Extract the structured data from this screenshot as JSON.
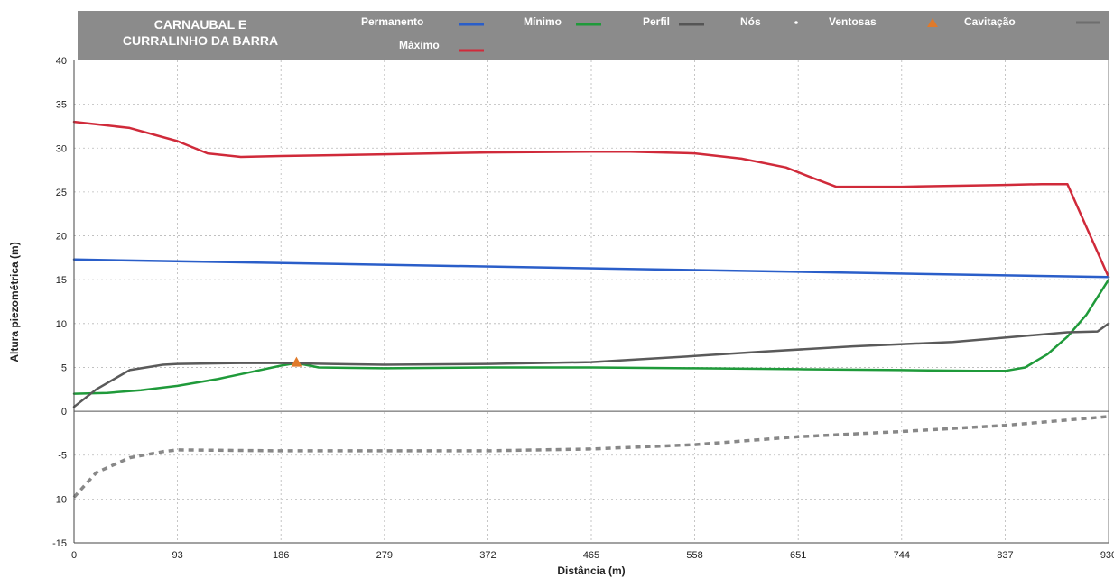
{
  "chart_data": {
    "type": "line",
    "title_lines": [
      "CARNAUBAL E",
      "CURRALINHO DA BARRA"
    ],
    "xlabel": "Distância (m)",
    "ylabel": "Altura piezométrica (m)",
    "xlim": [
      0,
      930
    ],
    "ylim": [
      -15,
      40
    ],
    "x_ticks": [
      "0",
      "93",
      "186",
      "279",
      "372",
      "465",
      "558",
      "651",
      "744",
      "837",
      "930"
    ],
    "y_ticks": [
      "40",
      "35",
      "30",
      "25",
      "20",
      "15",
      "10",
      "5",
      "0",
      "-5",
      "-10",
      "-15"
    ],
    "grid": true,
    "legend_position": "top",
    "legend": [
      {
        "label": "Permanento",
        "color": "#2a5ec9",
        "symbol": "line"
      },
      {
        "label": "Mínimo",
        "color": "#1f9a3a",
        "symbol": "line"
      },
      {
        "label": "Perfil",
        "color": "#555555",
        "symbol": "line"
      },
      {
        "label": "Nós",
        "color": "#ffffff",
        "symbol": "dot"
      },
      {
        "label": "Ventosas",
        "color": "#e07a2a",
        "symbol": "triangle"
      },
      {
        "label": "Cavitação",
        "color": "#888888",
        "symbol": "line"
      },
      {
        "label": "Máximo",
        "color": "#d02a3a",
        "symbol": "line"
      }
    ],
    "series": [
      {
        "name": "Máximo",
        "color": "#d02a3a",
        "style": "solid",
        "points": [
          [
            0,
            33
          ],
          [
            50,
            32.3
          ],
          [
            93,
            30.8
          ],
          [
            120,
            29.4
          ],
          [
            150,
            29
          ],
          [
            186,
            29.1
          ],
          [
            279,
            29.3
          ],
          [
            372,
            29.5
          ],
          [
            465,
            29.6
          ],
          [
            500,
            29.6
          ],
          [
            558,
            29.4
          ],
          [
            600,
            28.8
          ],
          [
            640,
            27.8
          ],
          [
            660,
            26.8
          ],
          [
            685,
            25.6
          ],
          [
            744,
            25.6
          ],
          [
            837,
            25.8
          ],
          [
            870,
            25.9
          ],
          [
            893,
            25.9
          ],
          [
            930,
            15.3
          ]
        ]
      },
      {
        "name": "Permanento",
        "color": "#2a5ec9",
        "style": "solid",
        "points": [
          [
            0,
            17.3
          ],
          [
            930,
            15.3
          ]
        ]
      },
      {
        "name": "Mínimo",
        "color": "#1f9a3a",
        "style": "solid",
        "points": [
          [
            0,
            2
          ],
          [
            30,
            2.1
          ],
          [
            60,
            2.4
          ],
          [
            93,
            2.9
          ],
          [
            130,
            3.7
          ],
          [
            160,
            4.5
          ],
          [
            186,
            5.2
          ],
          [
            200,
            5.5
          ],
          [
            220,
            5
          ],
          [
            279,
            4.9
          ],
          [
            372,
            5
          ],
          [
            465,
            5
          ],
          [
            558,
            4.9
          ],
          [
            651,
            4.8
          ],
          [
            744,
            4.7
          ],
          [
            810,
            4.6
          ],
          [
            837,
            4.6
          ],
          [
            855,
            5
          ],
          [
            875,
            6.5
          ],
          [
            893,
            8.5
          ],
          [
            910,
            11
          ],
          [
            930,
            15
          ]
        ]
      },
      {
        "name": "Perfil",
        "color": "#5a5a5a",
        "style": "solid",
        "points": [
          [
            0,
            0.5
          ],
          [
            20,
            2.5
          ],
          [
            50,
            4.7
          ],
          [
            80,
            5.3
          ],
          [
            93,
            5.4
          ],
          [
            150,
            5.5
          ],
          [
            186,
            5.5
          ],
          [
            230,
            5.4
          ],
          [
            279,
            5.3
          ],
          [
            372,
            5.4
          ],
          [
            465,
            5.6
          ],
          [
            558,
            6.3
          ],
          [
            620,
            6.8
          ],
          [
            700,
            7.4
          ],
          [
            790,
            7.9
          ],
          [
            837,
            8.4
          ],
          [
            893,
            9
          ],
          [
            920,
            9.1
          ],
          [
            930,
            10
          ]
        ]
      },
      {
        "name": "Cavitação",
        "color": "#888888",
        "style": "dashed",
        "points": [
          [
            0,
            -9.8
          ],
          [
            20,
            -7
          ],
          [
            50,
            -5.3
          ],
          [
            80,
            -4.6
          ],
          [
            93,
            -4.4
          ],
          [
            186,
            -4.5
          ],
          [
            279,
            -4.5
          ],
          [
            372,
            -4.5
          ],
          [
            465,
            -4.3
          ],
          [
            558,
            -3.8
          ],
          [
            651,
            -2.9
          ],
          [
            744,
            -2.3
          ],
          [
            837,
            -1.6
          ],
          [
            893,
            -1
          ],
          [
            930,
            -0.6
          ]
        ]
      }
    ],
    "markers": [
      {
        "name": "Ventosas",
        "x": 200,
        "y": 5.6,
        "symbol": "triangle",
        "color": "#e07a2a"
      }
    ]
  }
}
